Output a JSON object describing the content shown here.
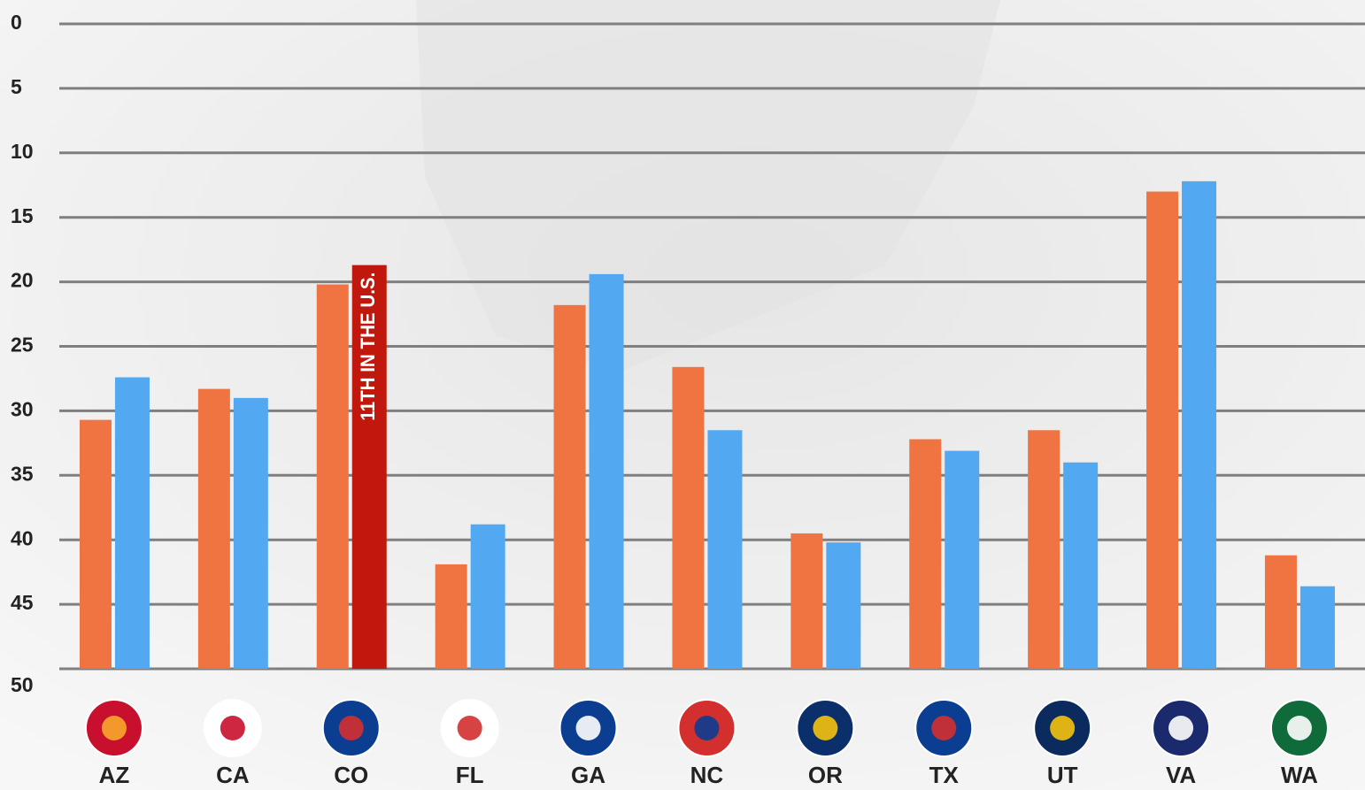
{
  "chart_data": {
    "type": "bar",
    "categories": [
      "AZ",
      "CA",
      "CO",
      "FL",
      "GA",
      "NC",
      "OR",
      "TX",
      "UT",
      "VA",
      "WA"
    ],
    "series": [
      {
        "color": "#f07442",
        "values": [
          30.7,
          28.3,
          20.2,
          41.9,
          21.8,
          26.6,
          39.5,
          32.2,
          31.5,
          13.0,
          41.2
        ]
      },
      {
        "color": "#52a9f2",
        "values": [
          27.4,
          29.0,
          18.7,
          38.8,
          19.4,
          31.5,
          40.2,
          33.1,
          34.0,
          12.2,
          43.6
        ]
      }
    ],
    "ylim": [
      0,
      50
    ],
    "yticks": [
      0,
      5,
      10,
      15,
      20,
      25,
      30,
      35,
      40,
      45,
      50
    ],
    "y_inverted": true,
    "grid": true,
    "annotations": [
      {
        "text": "11TH IN THE U.S.",
        "series": 1,
        "index": 2,
        "color": "#c0180c"
      }
    ]
  }
}
